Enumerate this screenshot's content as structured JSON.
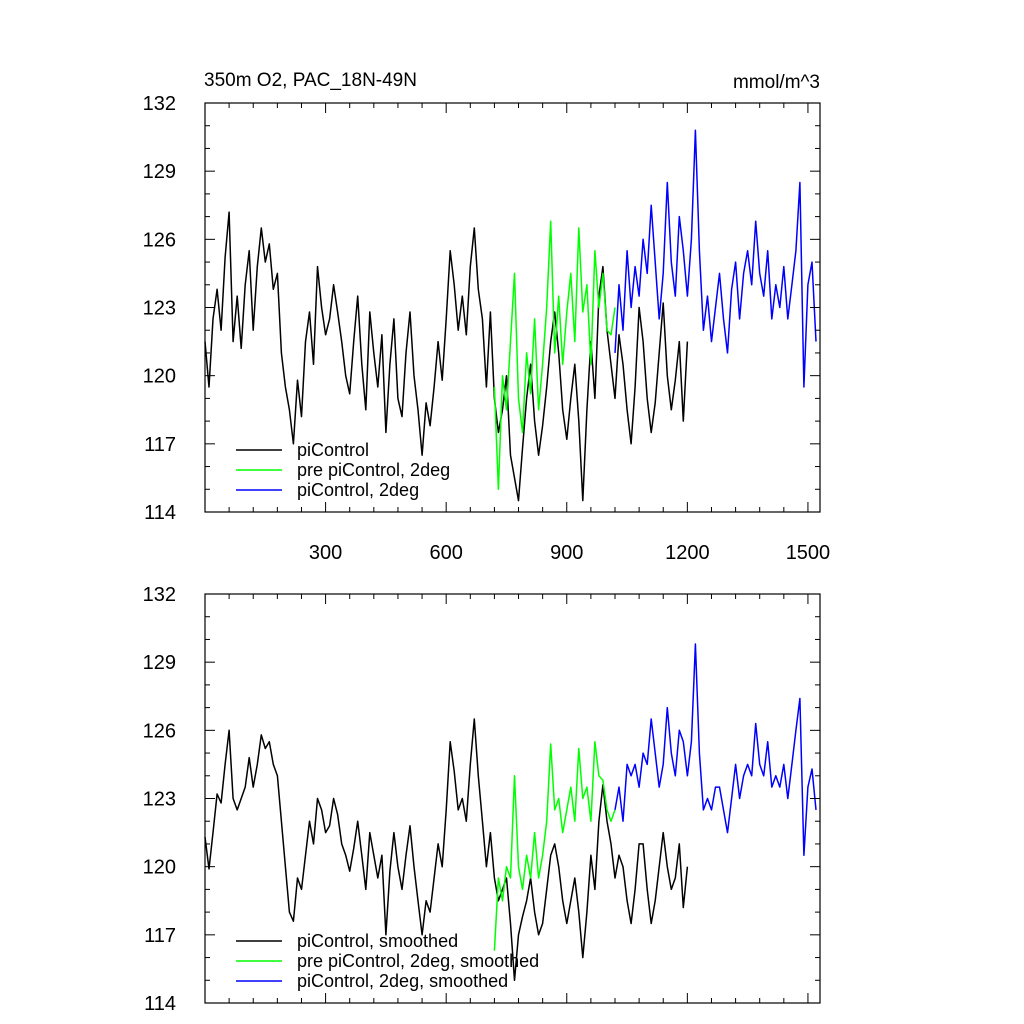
{
  "title_left": "350m O2, PAC_18N-49N",
  "title_right": "mmol/m^3",
  "colors": {
    "black": "#000000",
    "green": "#00ff00",
    "blue": "#0000ff"
  },
  "chart_data": [
    {
      "type": "line",
      "xlim": [
        0,
        1530
      ],
      "ylim": [
        114,
        132
      ],
      "yticks": [
        114,
        117,
        120,
        123,
        126,
        129,
        132
      ],
      "xticks": [
        300,
        600,
        900,
        1200,
        1500
      ],
      "legend_position": "bottom-left",
      "series": [
        {
          "name": "piControl",
          "color": "#000000",
          "x": [
            0,
            10,
            20,
            30,
            40,
            50,
            60,
            70,
            80,
            90,
            100,
            110,
            120,
            130,
            140,
            150,
            160,
            170,
            180,
            190,
            200,
            210,
            220,
            230,
            240,
            250,
            260,
            270,
            280,
            290,
            300,
            310,
            320,
            330,
            340,
            350,
            360,
            370,
            380,
            390,
            400,
            410,
            420,
            430,
            440,
            450,
            460,
            470,
            480,
            490,
            500,
            510,
            520,
            530,
            540,
            550,
            560,
            570,
            580,
            590,
            600,
            610,
            620,
            630,
            640,
            650,
            660,
            670,
            680,
            690,
            700,
            710,
            720,
            730,
            740,
            750,
            760,
            770,
            780,
            790,
            800,
            810,
            820,
            830,
            840,
            850,
            860,
            870,
            880,
            890,
            900,
            910,
            920,
            930,
            940,
            950,
            960,
            970,
            980,
            990,
            1000,
            1010,
            1020,
            1030,
            1040,
            1050,
            1060,
            1070,
            1080,
            1090,
            1100,
            1110,
            1120,
            1130,
            1140,
            1150,
            1160,
            1170,
            1180,
            1190,
            1200
          ],
          "y": [
            121.5,
            119.5,
            122.5,
            123.8,
            122.0,
            125.2,
            127.2,
            121.5,
            123.5,
            121.2,
            124.0,
            125.5,
            122.0,
            124.8,
            126.5,
            125.0,
            125.8,
            123.8,
            124.5,
            121.0,
            119.5,
            118.5,
            117.0,
            119.8,
            118.2,
            121.5,
            122.8,
            120.5,
            124.8,
            123.0,
            121.8,
            122.5,
            124.0,
            122.8,
            121.5,
            120.0,
            119.2,
            121.5,
            123.5,
            120.5,
            118.5,
            122.8,
            121.0,
            119.5,
            121.8,
            117.5,
            120.5,
            122.5,
            119.0,
            118.2,
            121.0,
            122.8,
            120.0,
            118.5,
            116.5,
            118.8,
            117.8,
            119.5,
            121.5,
            119.8,
            122.5,
            125.5,
            124.0,
            122.0,
            123.5,
            121.8,
            124.8,
            126.5,
            123.8,
            122.5,
            119.5,
            122.8,
            119.0,
            117.5,
            118.5,
            120.0,
            116.5,
            115.5,
            114.5,
            116.8,
            119.0,
            120.5,
            118.0,
            116.5,
            117.8,
            119.5,
            121.5,
            122.8,
            121.0,
            118.5,
            117.2,
            119.0,
            120.5,
            118.0,
            114.5,
            118.5,
            121.5,
            119.0,
            123.5,
            124.8,
            122.0,
            120.5,
            119.0,
            121.8,
            120.5,
            118.5,
            117.0,
            119.5,
            123.0,
            121.5,
            119.0,
            117.5,
            118.8,
            121.0,
            123.2,
            120.0,
            118.5,
            119.8,
            121.5,
            118.0,
            121.5
          ]
        },
        {
          "name": "pre piControl, 2deg",
          "color": "#00ff00",
          "x": [
            720,
            730,
            740,
            750,
            760,
            770,
            780,
            790,
            800,
            810,
            820,
            830,
            840,
            850,
            860,
            870,
            880,
            890,
            900,
            910,
            920,
            930,
            940,
            950,
            960,
            970,
            980,
            990,
            1000,
            1010,
            1020
          ],
          "y": [
            119.5,
            115.0,
            120.0,
            118.5,
            121.5,
            124.5,
            119.0,
            117.5,
            121.0,
            119.2,
            122.5,
            118.5,
            120.5,
            123.0,
            126.8,
            121.0,
            123.5,
            120.5,
            122.8,
            124.5,
            121.5,
            126.5,
            122.8,
            124.0,
            120.5,
            125.5,
            123.0,
            124.5,
            122.0,
            121.8,
            123.0
          ]
        },
        {
          "name": "piControl, 2deg",
          "color": "#0000ff",
          "x": [
            1020,
            1030,
            1040,
            1050,
            1060,
            1070,
            1080,
            1090,
            1100,
            1110,
            1120,
            1130,
            1140,
            1150,
            1160,
            1170,
            1180,
            1190,
            1200,
            1210,
            1220,
            1230,
            1240,
            1250,
            1260,
            1270,
            1280,
            1290,
            1300,
            1310,
            1320,
            1330,
            1340,
            1350,
            1360,
            1370,
            1380,
            1390,
            1400,
            1410,
            1420,
            1430,
            1440,
            1450,
            1460,
            1470,
            1480,
            1490,
            1500,
            1510,
            1520
          ],
          "y": [
            121.0,
            124.0,
            122.0,
            125.5,
            123.0,
            124.8,
            123.5,
            126.0,
            124.5,
            127.5,
            125.0,
            122.5,
            124.5,
            128.5,
            125.0,
            123.5,
            127.0,
            125.5,
            123.5,
            126.0,
            130.8,
            125.5,
            122.0,
            123.5,
            121.5,
            123.0,
            124.5,
            122.5,
            121.0,
            123.8,
            125.0,
            122.5,
            124.5,
            125.5,
            124.0,
            126.8,
            124.5,
            123.5,
            125.5,
            122.5,
            124.0,
            123.0,
            124.8,
            122.5,
            124.0,
            125.5,
            128.5,
            119.5,
            124.0,
            125.0,
            121.5
          ]
        }
      ]
    },
    {
      "type": "line",
      "xlim": [
        0,
        1530
      ],
      "ylim": [
        114,
        132
      ],
      "yticks": [
        114,
        117,
        120,
        123,
        126,
        129,
        132
      ],
      "xticks": [
        300,
        600,
        900,
        1200,
        1500
      ],
      "legend_position": "bottom-left",
      "series": [
        {
          "name": "piControl, smoothed",
          "color": "#000000",
          "x": [
            0,
            10,
            20,
            30,
            40,
            50,
            60,
            70,
            80,
            90,
            100,
            110,
            120,
            130,
            140,
            150,
            160,
            170,
            180,
            190,
            200,
            210,
            220,
            230,
            240,
            250,
            260,
            270,
            280,
            290,
            300,
            310,
            320,
            330,
            340,
            350,
            360,
            370,
            380,
            390,
            400,
            410,
            420,
            430,
            440,
            450,
            460,
            470,
            480,
            490,
            500,
            510,
            520,
            530,
            540,
            550,
            560,
            570,
            580,
            590,
            600,
            610,
            620,
            630,
            640,
            650,
            660,
            670,
            680,
            690,
            700,
            710,
            720,
            730,
            740,
            750,
            760,
            770,
            780,
            790,
            800,
            810,
            820,
            830,
            840,
            850,
            860,
            870,
            880,
            890,
            900,
            910,
            920,
            930,
            940,
            950,
            960,
            970,
            980,
            990,
            1000,
            1010,
            1020,
            1030,
            1040,
            1050,
            1060,
            1070,
            1080,
            1090,
            1100,
            1110,
            1120,
            1130,
            1140,
            1150,
            1160,
            1170,
            1180,
            1190,
            1200
          ],
          "y": [
            121.3,
            119.9,
            121.5,
            123.2,
            122.8,
            124.5,
            126.0,
            123.0,
            122.5,
            123.0,
            123.5,
            124.8,
            123.5,
            124.5,
            125.8,
            125.2,
            125.5,
            124.5,
            124.0,
            122.0,
            120.0,
            118.0,
            117.6,
            119.5,
            119.0,
            120.5,
            122.0,
            121.0,
            123.0,
            122.5,
            121.5,
            121.8,
            123.0,
            122.3,
            121.0,
            120.5,
            119.8,
            120.8,
            122.0,
            120.5,
            119.0,
            121.5,
            120.5,
            119.5,
            120.5,
            117.0,
            119.8,
            121.5,
            120.0,
            119.0,
            120.5,
            121.8,
            120.0,
            118.5,
            117.0,
            118.5,
            118.0,
            119.5,
            121.0,
            120.0,
            122.5,
            125.5,
            124.2,
            122.5,
            123.0,
            122.0,
            124.5,
            126.5,
            124.0,
            122.0,
            120.0,
            121.5,
            119.5,
            118.5,
            119.0,
            119.5,
            117.5,
            115.0,
            117.0,
            117.8,
            118.5,
            119.5,
            118.0,
            117.0,
            117.5,
            119.0,
            120.5,
            121.0,
            120.0,
            118.5,
            117.5,
            118.5,
            119.5,
            118.0,
            116.0,
            118.0,
            120.5,
            119.0,
            122.0,
            123.6,
            122.0,
            121.0,
            119.5,
            120.5,
            120.0,
            118.5,
            117.5,
            119.0,
            121.0,
            121.0,
            119.0,
            117.5,
            118.5,
            120.0,
            121.5,
            120.0,
            119.0,
            119.5,
            121.0,
            118.2,
            120.0
          ]
        },
        {
          "name": "pre piControl, 2deg, smoothed",
          "color": "#00ff00",
          "x": [
            720,
            730,
            740,
            750,
            760,
            770,
            780,
            790,
            800,
            810,
            820,
            830,
            840,
            850,
            860,
            870,
            880,
            890,
            900,
            910,
            920,
            930,
            940,
            950,
            960,
            970,
            980,
            990,
            1000,
            1010,
            1020
          ],
          "y": [
            116.3,
            119.5,
            118.5,
            120.0,
            119.5,
            124.0,
            120.0,
            119.0,
            120.5,
            119.5,
            121.5,
            119.5,
            120.5,
            122.0,
            125.4,
            122.5,
            123.0,
            121.5,
            122.5,
            123.5,
            122.0,
            125.2,
            123.0,
            123.5,
            122.0,
            125.5,
            124.0,
            123.8,
            122.5,
            122.0,
            122.5
          ]
        },
        {
          "name": "piControl, 2deg, smoothed",
          "color": "#0000ff",
          "x": [
            1020,
            1030,
            1040,
            1050,
            1060,
            1070,
            1080,
            1090,
            1100,
            1110,
            1120,
            1130,
            1140,
            1150,
            1160,
            1170,
            1180,
            1190,
            1200,
            1210,
            1220,
            1230,
            1240,
            1250,
            1260,
            1270,
            1280,
            1290,
            1300,
            1310,
            1320,
            1330,
            1340,
            1350,
            1360,
            1370,
            1380,
            1390,
            1400,
            1410,
            1420,
            1430,
            1440,
            1450,
            1460,
            1470,
            1480,
            1490,
            1500,
            1510,
            1520
          ],
          "y": [
            122.5,
            123.5,
            122.0,
            124.5,
            124.0,
            124.5,
            123.5,
            125.0,
            124.5,
            126.5,
            125.0,
            123.5,
            124.5,
            127.0,
            125.0,
            124.0,
            126.0,
            125.5,
            124.0,
            125.5,
            129.8,
            125.0,
            122.5,
            123.0,
            122.5,
            123.5,
            123.5,
            122.5,
            121.5,
            123.0,
            124.5,
            123.0,
            124.0,
            124.5,
            124.0,
            126.3,
            124.5,
            124.0,
            125.5,
            123.5,
            124.0,
            123.5,
            124.5,
            123.0,
            124.5,
            126.0,
            127.4,
            120.5,
            123.5,
            124.3,
            122.5
          ]
        }
      ]
    }
  ]
}
